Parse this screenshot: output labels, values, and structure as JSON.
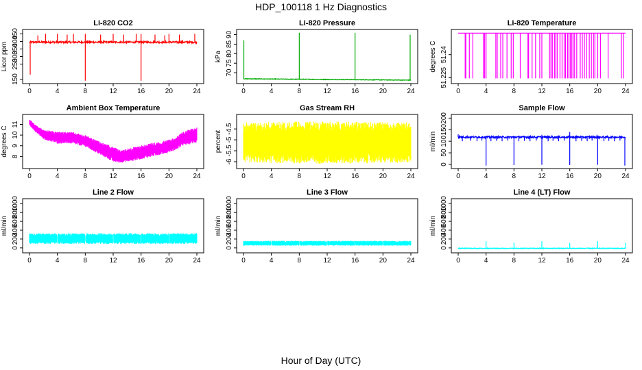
{
  "figure": {
    "title": "HDP_100118  1 Hz Diagnostics",
    "xlabel": "Hour of Day (UTC)"
  },
  "chart_data": [
    {
      "type": "line",
      "title": "Li-820 CO2",
      "ylabel": "Licor ppm",
      "color": "#ff0000",
      "xlim": [
        0,
        24
      ],
      "ylim": [
        130,
        470
      ],
      "xticks": [
        0,
        4,
        8,
        12,
        16,
        20,
        24
      ],
      "yticks": [
        150,
        250,
        300,
        350,
        400,
        450
      ],
      "pattern": "baseline_spikes",
      "baseline": 395,
      "noise": 6,
      "spikes_up": [
        [
          1.2,
          440
        ],
        [
          2.3,
          450
        ],
        [
          4.0,
          450
        ],
        [
          5.4,
          445
        ],
        [
          6.3,
          450
        ],
        [
          8.0,
          450
        ],
        [
          10.2,
          445
        ],
        [
          12.0,
          450
        ],
        [
          13.5,
          445
        ],
        [
          15.3,
          450
        ],
        [
          16.0,
          450
        ],
        [
          18.0,
          445
        ],
        [
          19.4,
          440
        ],
        [
          20.0,
          450
        ],
        [
          21.5,
          445
        ],
        [
          23.7,
          450
        ]
      ],
      "spikes_down": [
        [
          0.1,
          180
        ],
        [
          8.0,
          140
        ],
        [
          16.0,
          140
        ]
      ]
    },
    {
      "type": "line",
      "title": "Li-820 Pressure",
      "ylabel": "kPa",
      "color": "#00aa00",
      "xlim": [
        0,
        24
      ],
      "ylim": [
        65,
        92
      ],
      "xticks": [
        0,
        4,
        8,
        12,
        16,
        20,
        24
      ],
      "yticks": [
        70,
        75,
        80,
        85,
        90
      ],
      "pattern": "baseline_spikes",
      "baseline": 66.8,
      "drift_end": 66.1,
      "noise": 0.15,
      "spikes_up": [
        [
          0.05,
          87
        ],
        [
          8.0,
          91
        ],
        [
          16.0,
          91
        ],
        [
          23.9,
          90
        ]
      ],
      "spikes_down": []
    },
    {
      "type": "line",
      "title": "Li-820 Temperature",
      "ylabel": "degrees C",
      "color": "#ff00ff",
      "xlim": [
        0,
        24
      ],
      "ylim": [
        51.222,
        51.2555
      ],
      "xticks": [
        0,
        4,
        8,
        12,
        16,
        20,
        24
      ],
      "yticks": [
        51.225,
        51.24
      ],
      "pattern": "top_dropouts",
      "baseline": 51.254,
      "drop_to": 51.2245,
      "drops": [
        1.0,
        1.1,
        1.6,
        2.1,
        3.6,
        3.8,
        4.0,
        5.4,
        5.6,
        6.1,
        6.4,
        7.0,
        7.6,
        7.9,
        8.9,
        10.0,
        10.1,
        10.6,
        11.1,
        11.7,
        12.0,
        13.1,
        13.3,
        13.5,
        13.8,
        14.0,
        14.2,
        14.6,
        14.9,
        15.2,
        15.4,
        15.7,
        15.9,
        16.1,
        16.3,
        16.5,
        16.7,
        17.0,
        17.5,
        17.8,
        18.1,
        18.4,
        18.8,
        19.1,
        19.4,
        19.6,
        20.0,
        20.4,
        21.5,
        23.4,
        23.7
      ]
    },
    {
      "type": "line",
      "title": "Ambient Box Temperature",
      "ylabel": "degrees C",
      "color": "#ff00ff",
      "xlim": [
        0,
        24
      ],
      "ylim": [
        7,
        11.8
      ],
      "xticks": [
        0,
        4,
        8,
        12,
        16,
        20,
        24
      ],
      "yticks": [
        8,
        9,
        10,
        11
      ],
      "pattern": "band",
      "band": [
        [
          0,
          10.9,
          11.5
        ],
        [
          1,
          10.2,
          10.9
        ],
        [
          2,
          9.6,
          10.5
        ],
        [
          4,
          9.2,
          10.3
        ],
        [
          6,
          9.2,
          10.3
        ],
        [
          8,
          8.9,
          10.0
        ],
        [
          10,
          8.2,
          9.4
        ],
        [
          12,
          7.5,
          8.9
        ],
        [
          13,
          7.4,
          8.6
        ],
        [
          15,
          7.6,
          8.9
        ],
        [
          17,
          7.9,
          9.2
        ],
        [
          19,
          8.2,
          9.4
        ],
        [
          21,
          8.6,
          9.8
        ],
        [
          22,
          9.0,
          10.3
        ],
        [
          24,
          9.3,
          10.8
        ]
      ]
    },
    {
      "type": "line",
      "title": "Gas Stream RH",
      "ylabel": "percent",
      "color": "#ffff00",
      "xlim": [
        0,
        24
      ],
      "ylim": [
        -6.25,
        -3.9
      ],
      "xticks": [
        0,
        4,
        8,
        12,
        16,
        20,
        24
      ],
      "yticks": [
        -6.0,
        -5.5,
        -5.0,
        -4.5
      ],
      "pattern": "band",
      "band": [
        [
          0,
          -6.05,
          -4.2
        ],
        [
          12,
          -6.1,
          -4.15
        ],
        [
          24,
          -6.05,
          -4.2
        ]
      ]
    },
    {
      "type": "line",
      "title": "Sample Flow",
      "ylabel": "ml/min",
      "color": "#0000ff",
      "xlim": [
        0,
        24
      ],
      "ylim": [
        -12,
        210
      ],
      "xticks": [
        0,
        4,
        8,
        12,
        16,
        20,
        24
      ],
      "yticks": [
        0,
        50,
        100,
        150,
        200
      ],
      "pattern": "baseline_spikes",
      "baseline": 118,
      "noise": 4,
      "spikes_up": [
        [
          0.0,
          130
        ],
        [
          12.0,
          128
        ],
        [
          16.0,
          140
        ],
        [
          19.9,
          128
        ]
      ],
      "spikes_down": [
        [
          0.1,
          110
        ],
        [
          0.6,
          100
        ],
        [
          1.8,
          102
        ],
        [
          2.7,
          100
        ],
        [
          3.4,
          103
        ],
        [
          4.0,
          -5
        ],
        [
          4.7,
          100
        ],
        [
          5.5,
          102
        ],
        [
          6.3,
          100
        ],
        [
          7.1,
          103
        ],
        [
          8.0,
          -3
        ],
        [
          8.7,
          100
        ],
        [
          9.5,
          102
        ],
        [
          10.3,
          100
        ],
        [
          11.2,
          103
        ],
        [
          12.0,
          -2
        ],
        [
          12.9,
          100
        ],
        [
          13.6,
          102
        ],
        [
          14.4,
          100
        ],
        [
          15.2,
          103
        ],
        [
          16.0,
          -3
        ],
        [
          16.9,
          100
        ],
        [
          17.7,
          102
        ],
        [
          18.5,
          100
        ],
        [
          19.2,
          103
        ],
        [
          20.0,
          -2
        ],
        [
          20.9,
          100
        ],
        [
          21.6,
          102
        ],
        [
          22.4,
          100
        ],
        [
          23.2,
          103
        ],
        [
          23.9,
          -5
        ]
      ]
    },
    {
      "type": "line",
      "title": "Line 2 Flow",
      "ylabel": "ml/min",
      "color": "#00ffff",
      "xlim": [
        0,
        24
      ],
      "ylim": [
        -80,
        1080
      ],
      "xticks": [
        0,
        4,
        8,
        12,
        16,
        20,
        24
      ],
      "yticks": [
        0,
        200,
        400,
        600,
        800,
        1000
      ],
      "pattern": "band",
      "band": [
        [
          0,
          90,
          330
        ],
        [
          24,
          90,
          330
        ]
      ],
      "gaps": [
        4.0,
        8.0,
        12.0,
        16.0,
        20.0
      ]
    },
    {
      "type": "line",
      "title": "Line 3 Flow",
      "ylabel": "ml/min",
      "color": "#00ffff",
      "xlim": [
        0,
        24
      ],
      "ylim": [
        -80,
        1080
      ],
      "xticks": [
        0,
        4,
        8,
        12,
        16,
        20,
        24
      ],
      "yticks": [
        0,
        200,
        400,
        600,
        800,
        1000
      ],
      "pattern": "band",
      "band": [
        [
          0,
          50,
          160
        ],
        [
          24,
          50,
          160
        ]
      ],
      "gaps": [
        4.0,
        8.0,
        12.0,
        16.0,
        20.0
      ]
    },
    {
      "type": "line",
      "title": "Line 4 (LT) Flow",
      "ylabel": "ml/min",
      "color": "#00ffff",
      "xlim": [
        0,
        24
      ],
      "ylim": [
        -80,
        1080
      ],
      "xticks": [
        0,
        4,
        8,
        12,
        16,
        20,
        24
      ],
      "yticks": [
        0,
        200,
        400,
        600,
        800,
        1000
      ],
      "pattern": "baseline_spikes",
      "baseline": -10,
      "noise": 8,
      "spikes_up": [
        [
          4.0,
          150
        ],
        [
          8.0,
          120
        ],
        [
          12.0,
          150
        ],
        [
          16.0,
          110
        ],
        [
          20.0,
          150
        ],
        [
          24.0,
          110
        ]
      ],
      "spikes_down": []
    }
  ]
}
